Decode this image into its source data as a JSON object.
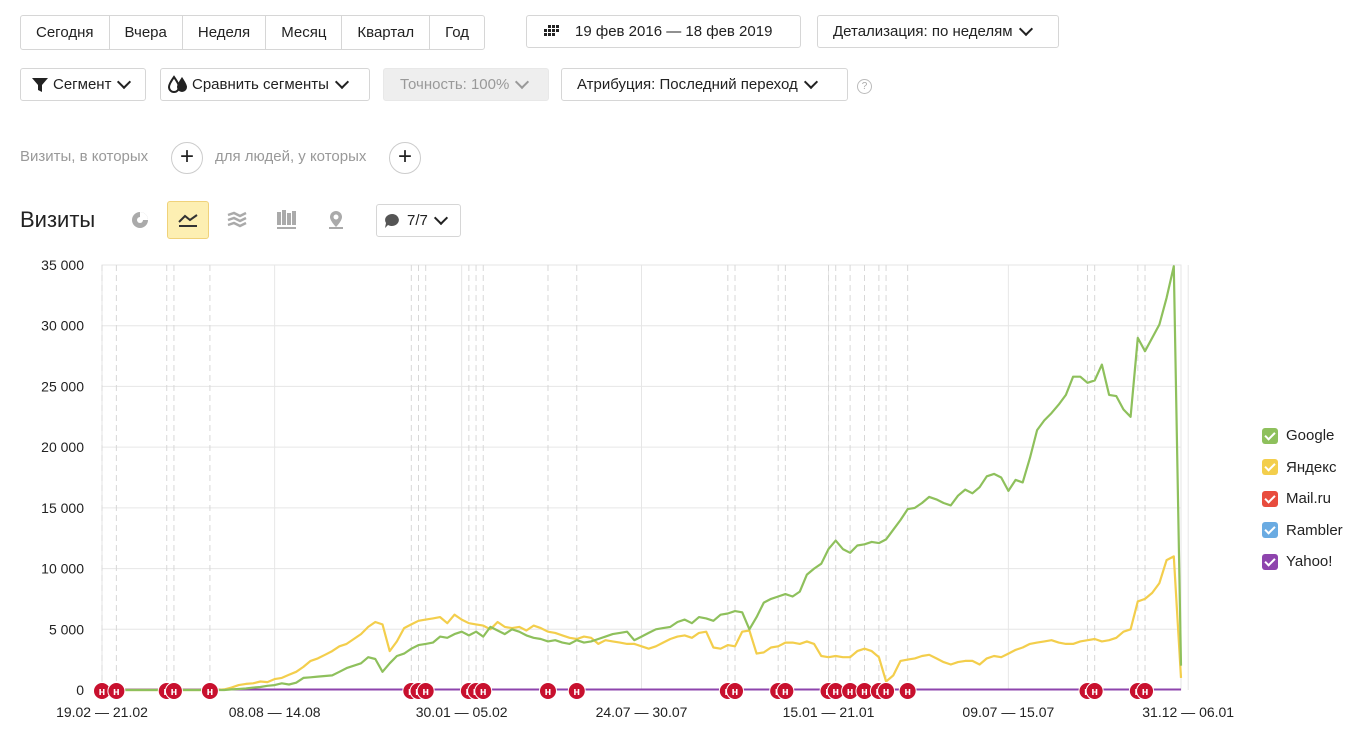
{
  "periods": [
    "Сегодня",
    "Вчера",
    "Неделя",
    "Месяц",
    "Квартал",
    "Год"
  ],
  "date_range": "19 фев 2016 — 18 фев 2019",
  "detail": "Детализация: по неделям",
  "segment": "Сегмент",
  "compare": "Сравнить сегменты",
  "accuracy": "Точность: 100%",
  "attribution": "Атрибуция: Последний переход",
  "help": "?",
  "filter": {
    "visits_label": "Визиты, в которых",
    "people_label": "для людей, у которых"
  },
  "report": {
    "title": "Визиты",
    "notes_badge": "7/7"
  },
  "note_marker": "н",
  "legend": [
    {
      "name": "Google",
      "color": "#8ec05c"
    },
    {
      "name": "Яндекс",
      "color": "#f3ce4c"
    },
    {
      "name": "Mail.ru",
      "color": "#e84c3d"
    },
    {
      "name": "Rambler",
      "color": "#6aabe2"
    },
    {
      "name": "Yahoo!",
      "color": "#8e44ad"
    }
  ],
  "chart_data": {
    "type": "line",
    "ylim": [
      0,
      35000
    ],
    "yticks": [
      "0",
      "5 000",
      "10 000",
      "15 000",
      "20 000",
      "25 000",
      "30 000",
      "35 000"
    ],
    "yticks_values": [
      0,
      5000,
      10000,
      15000,
      20000,
      25000,
      30000,
      35000
    ],
    "xticks": [
      "19.02 — 21.02",
      "08.08 — 14.08",
      "30.01 — 05.02",
      "24.07 — 30.07",
      "15.01 — 21.01",
      "09.07 — 15.07",
      "31.12 — 06.01"
    ],
    "xticks_index": [
      0,
      24,
      50,
      75,
      101,
      126,
      151
    ],
    "note_weeks": [
      0,
      2,
      9,
      10,
      15,
      43,
      44,
      45,
      51,
      52,
      53,
      62,
      66,
      87,
      88,
      94,
      95,
      101,
      102,
      104,
      106,
      108,
      109,
      112,
      137,
      138,
      144,
      145
    ],
    "series": [
      {
        "name": "Google",
        "color": "#8ec05c",
        "values": [
          0,
          0,
          0,
          0,
          0,
          0,
          0,
          0,
          0,
          0,
          0,
          0,
          0,
          0,
          0,
          0,
          0,
          0,
          50,
          80,
          120,
          200,
          250,
          350,
          400,
          550,
          450,
          600,
          1000,
          1050,
          1100,
          1150,
          1200,
          1500,
          1800,
          2000,
          2200,
          2700,
          2550,
          1500,
          2200,
          2800,
          3000,
          3400,
          3700,
          3800,
          3900,
          4400,
          4300,
          4600,
          4800,
          4500,
          4800,
          4400,
          5200,
          4900,
          4600,
          5000,
          4800,
          4500,
          4300,
          4200,
          4000,
          4100,
          3900,
          3800,
          4100,
          3900,
          4000,
          4200,
          4400,
          4600,
          4700,
          4800,
          4100,
          4400,
          4700,
          5000,
          5100,
          5200,
          5600,
          5800,
          5500,
          6000,
          5900,
          5700,
          6200,
          6300,
          6500,
          6400,
          5000,
          6000,
          7200,
          7500,
          7700,
          7900,
          7700,
          8100,
          9500,
          10000,
          10400,
          11600,
          12300,
          11600,
          11300,
          11900,
          12000,
          12200,
          12100,
          12400,
          13200,
          14000,
          14900,
          15000,
          15400,
          15900,
          15700,
          15400,
          15200,
          16000,
          16500,
          16200,
          16700,
          17600,
          17800,
          17500,
          16400,
          17300,
          17100,
          19100,
          21400,
          22200,
          22800,
          23500,
          24300,
          25800,
          25800,
          25300,
          25500,
          26800,
          24300,
          24200,
          23100,
          22500,
          29000,
          27900,
          29000,
          30100,
          32300,
          34900,
          2000
        ]
      },
      {
        "name": "Яндекс",
        "color": "#f3ce4c",
        "values": [
          0,
          0,
          0,
          0,
          0,
          0,
          0,
          0,
          0,
          0,
          0,
          0,
          0,
          0,
          0,
          0,
          0,
          50,
          200,
          400,
          500,
          550,
          700,
          650,
          900,
          1000,
          1250,
          1500,
          1900,
          2400,
          2600,
          2900,
          3200,
          3600,
          3800,
          4200,
          4600,
          5200,
          5600,
          5400,
          3200,
          4000,
          5100,
          5400,
          5700,
          5800,
          5900,
          6000,
          5500,
          6200,
          5800,
          5500,
          5400,
          5300,
          5000,
          5600,
          5200,
          5100,
          5200,
          4900,
          5300,
          5100,
          4800,
          4700,
          4500,
          4300,
          4200,
          4400,
          4300,
          3800,
          4100,
          4000,
          3900,
          3800,
          3800,
          3600,
          3400,
          3600,
          3900,
          4200,
          4400,
          4500,
          4300,
          4700,
          4800,
          3500,
          3400,
          3700,
          3600,
          4800,
          4900,
          3000,
          3100,
          3500,
          3600,
          3900,
          3900,
          3800,
          4000,
          3800,
          2800,
          2700,
          2800,
          2700,
          2700,
          3200,
          3400,
          3200,
          2700,
          700,
          1200,
          2400,
          2500,
          2600,
          2800,
          2900,
          2600,
          2300,
          2100,
          2300,
          2400,
          2400,
          2100,
          2600,
          2800,
          2700,
          3000,
          3300,
          3500,
          3800,
          3900,
          4000,
          4100,
          3900,
          3800,
          3800,
          4000,
          4100,
          4200,
          4000,
          4100,
          4300,
          4800,
          5000,
          7300,
          7500,
          8000,
          8800,
          10700,
          11000,
          1000
        ]
      },
      {
        "name": "Mail.ru",
        "color": "#e84c3d",
        "values": "≈0"
      },
      {
        "name": "Rambler",
        "color": "#6aabe2",
        "values": "≈0"
      },
      {
        "name": "Yahoo!",
        "color": "#8e44ad",
        "values": "≈0"
      }
    ]
  }
}
